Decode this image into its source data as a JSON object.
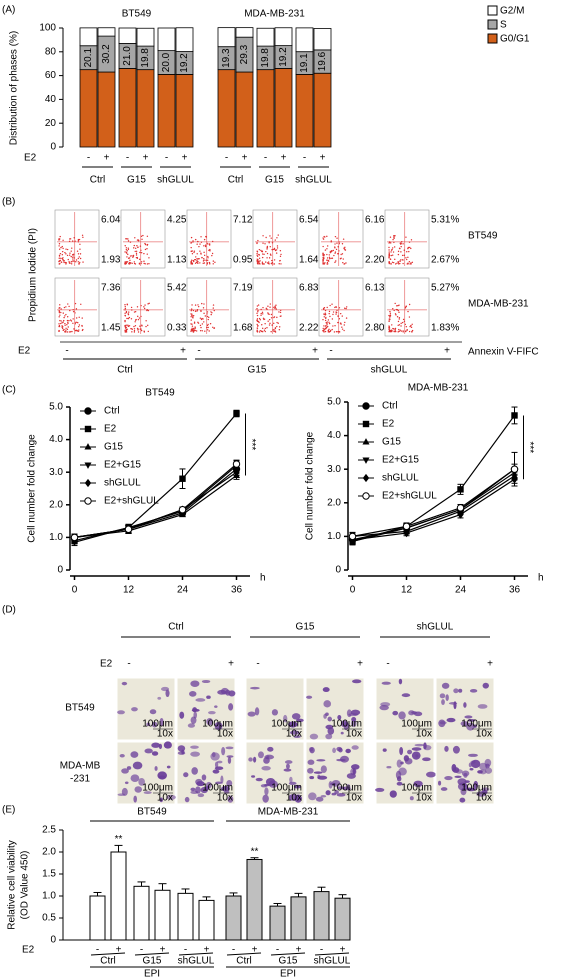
{
  "panel_labels": [
    "(A)",
    "(B)",
    "(C)",
    "(D)",
    "(E)"
  ],
  "chart_data": [
    {
      "type": "bar",
      "stacked": true,
      "ylabel": "Distribution of phases (%)",
      "ylim": [
        0,
        100
      ],
      "yticks": [
        0,
        20,
        40,
        60,
        80,
        100
      ],
      "titles": [
        "BT549",
        "MDA-MB-231"
      ],
      "treatment_label": "E2",
      "categories": [
        "-",
        "+",
        "-",
        "+",
        "-",
        "+",
        "-",
        "+",
        "-",
        "+",
        "-",
        "+"
      ],
      "groups": [
        "Ctrl",
        "G15",
        "shGLUL",
        "Ctrl",
        "G15",
        "shGLUL"
      ],
      "legend": "right",
      "series": [
        {
          "name": "G2/M",
          "color": "#ffffff",
          "values": [
            15,
            7,
            13,
            15,
            19,
            20,
            16,
            8,
            15,
            15,
            20,
            18
          ]
        },
        {
          "name": "S",
          "color": "#a6a6a6",
          "values": [
            20.1,
            30.2,
            21.0,
            19.8,
            20.0,
            19.2,
            19.3,
            29.3,
            19.8,
            19.2,
            19.1,
            19.6
          ],
          "value_labels": [
            "20.1",
            "30.2",
            "21.0",
            "19.8",
            "20.0",
            "19.2",
            "19.3",
            "29.3",
            "19.8",
            "19.2",
            "19.1",
            "19.6"
          ]
        },
        {
          "name": "G0/G1",
          "color": "#d2601a",
          "values": [
            65,
            63,
            66,
            65,
            61,
            61,
            65,
            63,
            65,
            66,
            61,
            62
          ]
        }
      ]
    },
    {
      "type": "line",
      "title": "BT549",
      "ylabel": "Cell number fold change",
      "x": [
        0,
        12,
        24,
        36
      ],
      "xlim": [
        -1,
        39
      ],
      "xticks": [
        0,
        12,
        24,
        36
      ],
      "xunit": "h",
      "ylim": [
        0,
        5
      ],
      "yticks": [
        0,
        {
          "value": 1,
          "label": "1.0"
        },
        {
          "value": 2,
          "label": "2.0"
        },
        {
          "value": 3,
          "label": "3.0"
        },
        {
          "value": 4,
          "label": "4.0"
        },
        {
          "value": 5,
          "label": "5.0"
        }
      ],
      "significance": "***",
      "series": [
        {
          "name": "Ctrl",
          "marker": "circle",
          "values": [
            1.0,
            1.25,
            1.75,
            3.1
          ],
          "errors": [
            0.1,
            0.1,
            0.08,
            0.15
          ]
        },
        {
          "name": "E2",
          "marker": "square",
          "values": [
            0.9,
            1.3,
            2.8,
            4.8
          ],
          "errors": [
            0.1,
            0.1,
            0.3,
            0.1
          ]
        },
        {
          "name": "G15",
          "marker": "triangle",
          "values": [
            1.0,
            1.2,
            1.7,
            2.9
          ],
          "errors": [
            0.08,
            0.08,
            0.06,
            0.12
          ]
        },
        {
          "name": "E2+G15",
          "marker": "triangle-down",
          "values": [
            0.85,
            1.3,
            1.8,
            3.2
          ],
          "errors": [
            0.1,
            0.1,
            0.08,
            0.15
          ]
        },
        {
          "name": "shGLUL",
          "marker": "diamond",
          "values": [
            1.0,
            1.25,
            1.85,
            3.0
          ],
          "errors": [
            0.1,
            0.08,
            0.08,
            0.1
          ]
        },
        {
          "name": "E2+shGLUL",
          "marker": "open-circle",
          "values": [
            1.0,
            1.25,
            1.85,
            3.25
          ],
          "errors": [
            0.1,
            0.1,
            0.08,
            0.12
          ]
        }
      ]
    },
    {
      "type": "line",
      "title": "MDA-MB-231",
      "ylabel": "Cell number fold change",
      "x": [
        0,
        12,
        24,
        36
      ],
      "xlim": [
        -1,
        39
      ],
      "xticks": [
        0,
        12,
        24,
        36
      ],
      "xunit": "h",
      "ylim": [
        0,
        5
      ],
      "yticks": [
        0,
        {
          "value": 1,
          "label": "1.0"
        },
        {
          "value": 2,
          "label": "2.0"
        },
        {
          "value": 3,
          "label": "3.0"
        },
        {
          "value": 4,
          "label": "4.0"
        },
        {
          "value": 5,
          "label": "5.0"
        }
      ],
      "significance": "***",
      "series": [
        {
          "name": "Ctrl",
          "marker": "circle",
          "values": [
            0.9,
            1.25,
            1.8,
            3.0
          ],
          "errors": [
            0.12,
            0.1,
            0.1,
            0.15
          ]
        },
        {
          "name": "E2",
          "marker": "square",
          "values": [
            0.85,
            1.3,
            2.4,
            4.6
          ],
          "errors": [
            0.1,
            0.1,
            0.15,
            0.25
          ]
        },
        {
          "name": "G15",
          "marker": "triangle",
          "values": [
            1.0,
            1.15,
            1.75,
            2.8
          ],
          "errors": [
            0.1,
            0.08,
            0.1,
            0.12
          ]
        },
        {
          "name": "E2+G15",
          "marker": "triangle-down",
          "values": [
            0.85,
            1.25,
            1.8,
            2.9
          ],
          "errors": [
            0.1,
            0.1,
            0.1,
            0.15
          ]
        },
        {
          "name": "shGLUL",
          "marker": "diamond",
          "values": [
            0.9,
            1.1,
            1.65,
            2.7
          ],
          "errors": [
            0.1,
            0.08,
            0.1,
            0.12
          ]
        },
        {
          "name": "E2+shGLUL",
          "marker": "open-circle",
          "values": [
            1.0,
            1.3,
            1.85,
            3.0
          ],
          "errors": [
            0.12,
            0.1,
            0.1,
            0.5
          ]
        }
      ]
    },
    {
      "type": "bar",
      "ylabel": [
        "Relative cell viability",
        "(OD Value 450)"
      ],
      "ylim": [
        0,
        2.5
      ],
      "yticks": [
        0,
        0.5,
        {
          "value": 1,
          "label": "1.0"
        },
        1.5,
        {
          "value": 2,
          "label": "2.0"
        },
        2.5
      ],
      "titles": [
        "BT549",
        "MDA-MB-231"
      ],
      "bar_colors": [
        "#ffffff",
        "#bfbfbf"
      ],
      "footer_labels": [
        "EPI",
        "EPI"
      ],
      "treatment_label": "E2",
      "categories": [
        "-",
        "+",
        "-",
        "+",
        "-",
        "+",
        "-",
        "+",
        "-",
        "+",
        "-",
        "+"
      ],
      "groups": [
        "Ctrl",
        "G15",
        "shGLUL",
        "Ctrl",
        "G15",
        "shGLUL"
      ],
      "values": [
        1.0,
        2.0,
        1.22,
        1.13,
        1.06,
        0.9,
        1.0,
        1.83,
        0.77,
        0.98,
        1.1,
        0.95
      ],
      "errors": [
        0.08,
        0.15,
        0.1,
        0.15,
        0.1,
        0.08,
        0.07,
        0.04,
        0.06,
        0.08,
        0.1,
        0.08
      ],
      "marks": [
        null,
        "**",
        null,
        null,
        null,
        null,
        null,
        "**",
        null,
        null,
        null,
        null
      ]
    }
  ],
  "flow_cytometry": {
    "ylabel": "Propidium Iodide (PI)",
    "xlabel": "Annexin V-FIFC",
    "treatment_label": "E2",
    "signs": [
      "-",
      "+",
      "-",
      "+",
      "-",
      "+"
    ],
    "groups": [
      "Ctrl",
      "G15",
      "shGLUL"
    ],
    "rows": [
      {
        "label": "BT549",
        "plots": [
          {
            "upper": "6.04%",
            "lower": "1.93%"
          },
          {
            "upper": "4.25%",
            "lower": "1.13%"
          },
          {
            "upper": "7.12%",
            "lower": "0.95%"
          },
          {
            "upper": "6.54%",
            "lower": "1.64%"
          },
          {
            "upper": "6.16%",
            "lower": "2.20%"
          },
          {
            "upper": "5.31%",
            "lower": "2.67%"
          }
        ]
      },
      {
        "label": "MDA-MB-231",
        "plots": [
          {
            "upper": "7.36%",
            "lower": "1.45%"
          },
          {
            "upper": "5.42%",
            "lower": "0.33%"
          },
          {
            "upper": "7.19%",
            "lower": "1.68%"
          },
          {
            "upper": "6.83%",
            "lower": "2.22%"
          },
          {
            "upper": "6.13%",
            "lower": "2.80%"
          },
          {
            "upper": "5.27%",
            "lower": "1.83%"
          }
        ]
      }
    ]
  },
  "migration": {
    "treatment_label": "E2",
    "groups": [
      "Ctrl",
      "G15",
      "shGLUL"
    ],
    "signs": [
      "-",
      "+",
      "-",
      "+",
      "-",
      "+"
    ],
    "scale_label": "100μm",
    "magnification": "10x",
    "rows": [
      [
        "BT549"
      ],
      [
        "MDA-MB",
        "-231"
      ]
    ]
  }
}
